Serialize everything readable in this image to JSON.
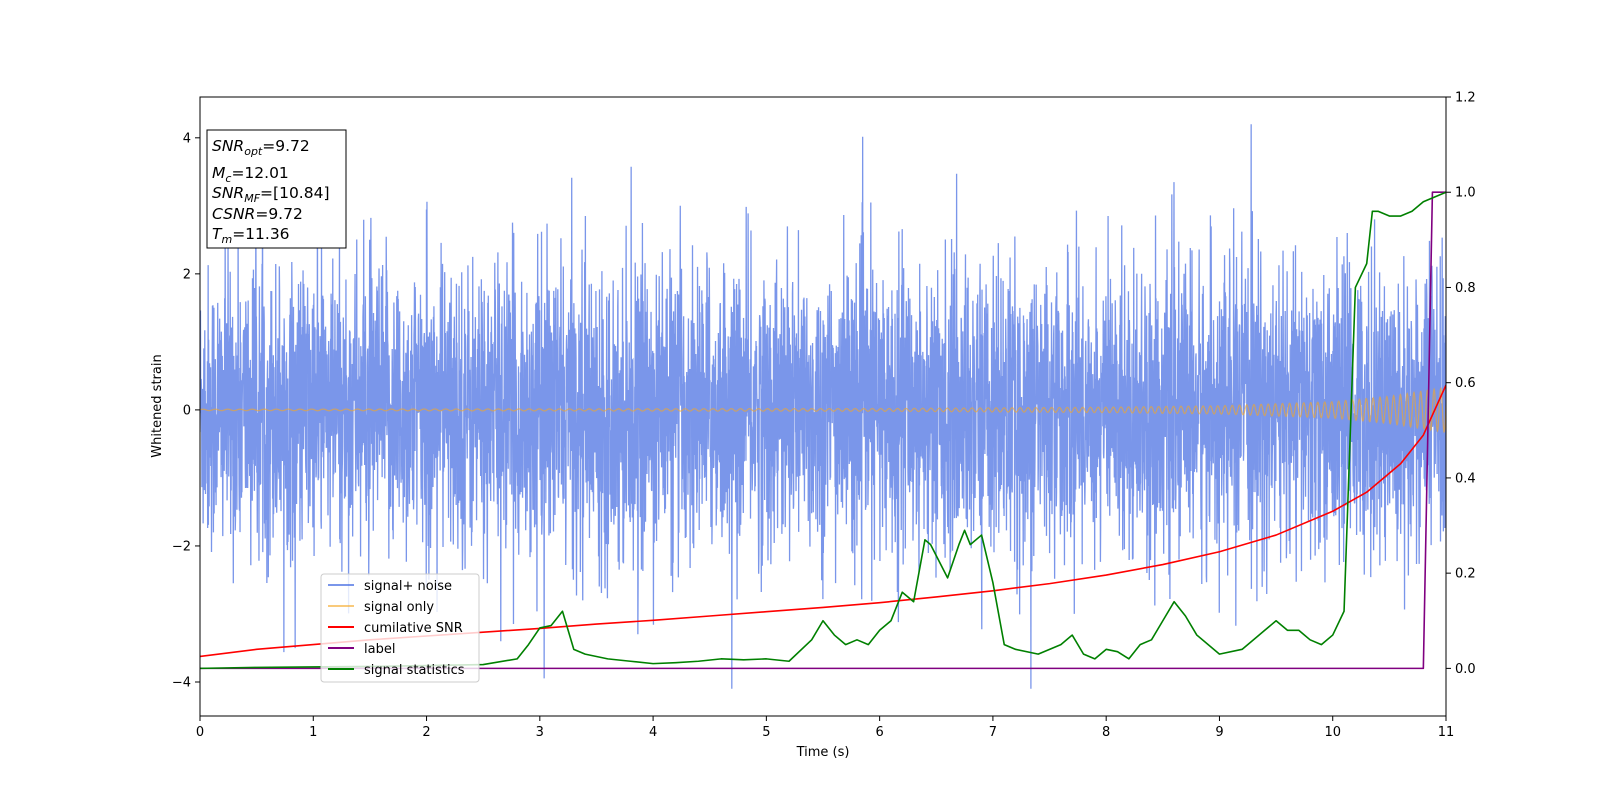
{
  "chart_data": {
    "type": "line",
    "xlabel": "Time (s)",
    "ylabel": "Whitened strain",
    "xlim": [
      0,
      11
    ],
    "ylim": [
      -4.5,
      4.6
    ],
    "y2lim": [
      -0.1,
      1.2
    ],
    "x_ticks": [
      "0",
      "1",
      "2",
      "3",
      "4",
      "5",
      "6",
      "7",
      "8",
      "9",
      "10",
      "11"
    ],
    "y_ticks": [
      "−4",
      "−2",
      "0",
      "2",
      "4"
    ],
    "y2_ticks": [
      "0.0",
      "0.2",
      "0.4",
      "0.6",
      "0.8",
      "1.0",
      "1.2"
    ],
    "grid": false,
    "legend_position": "lower-left",
    "info_box": {
      "snr_opt": {
        "sym": "SNR",
        "sub": "opt",
        "val": "=9.72"
      },
      "mc": {
        "sym": "M",
        "sub": "c",
        "val": "=12.01"
      },
      "snr_mf": {
        "sym": "SNR",
        "sub": "MF",
        "val": "=[10.84]"
      },
      "csnr": {
        "sym": "CSNR",
        "sub": "",
        "val": "=9.72"
      },
      "tm": {
        "sym": "T",
        "sub": "m",
        "val": "=11.36"
      }
    },
    "series": [
      {
        "name": "signal+ noise",
        "color": "#4169e1",
        "axis": "left",
        "description_values": "whitened noise, std ~1, peaks to ~4.2 / ~-4.1"
      },
      {
        "name": "signal only",
        "color": "#f5a623",
        "axis": "left",
        "amplitude_envelope": {
          "x": [
            0,
            6,
            8,
            9,
            10,
            10.5,
            11
          ],
          "y": [
            0.01,
            0.02,
            0.04,
            0.06,
            0.12,
            0.2,
            0.33
          ]
        }
      },
      {
        "name": "cumilative SNR",
        "color": "#ff0000",
        "axis": "right",
        "x": [
          0,
          0.5,
          1,
          1.5,
          2,
          2.5,
          3,
          3.5,
          4,
          4.5,
          5,
          5.5,
          6,
          6.5,
          7,
          7.5,
          8,
          8.5,
          9,
          9.5,
          10,
          10.3,
          10.6,
          10.8,
          11
        ],
        "y": [
          0.025,
          0.04,
          0.05,
          0.06,
          0.068,
          0.076,
          0.084,
          0.093,
          0.101,
          0.11,
          0.119,
          0.128,
          0.138,
          0.15,
          0.163,
          0.178,
          0.196,
          0.218,
          0.245,
          0.28,
          0.33,
          0.37,
          0.43,
          0.49,
          0.595
        ]
      },
      {
        "name": "label",
        "color": "#800080",
        "axis": "right",
        "x": [
          0,
          10.8,
          10.88,
          11
        ],
        "y": [
          0,
          0,
          1,
          1
        ]
      },
      {
        "name": "signal statistics",
        "color": "#008000",
        "axis": "right",
        "x": [
          0,
          0.5,
          1,
          1.5,
          2,
          2.5,
          2.8,
          2.9,
          3.0,
          3.1,
          3.2,
          3.3,
          3.4,
          3.6,
          3.8,
          4.0,
          4.2,
          4.4,
          4.6,
          4.8,
          5.0,
          5.2,
          5.4,
          5.5,
          5.6,
          5.7,
          5.8,
          5.9,
          6.0,
          6.1,
          6.2,
          6.3,
          6.4,
          6.45,
          6.6,
          6.7,
          6.75,
          6.8,
          6.9,
          7.0,
          7.1,
          7.2,
          7.4,
          7.6,
          7.7,
          7.8,
          7.9,
          8.0,
          8.1,
          8.2,
          8.3,
          8.4,
          8.5,
          8.6,
          8.7,
          8.8,
          9.0,
          9.2,
          9.4,
          9.5,
          9.6,
          9.7,
          9.8,
          9.9,
          10.0,
          10.1,
          10.2,
          10.3,
          10.35,
          10.4,
          10.5,
          10.6,
          10.7,
          10.8,
          10.9,
          11.0
        ],
        "y": [
          0.0,
          0.002,
          0.003,
          0.004,
          0.006,
          0.008,
          0.02,
          0.05,
          0.085,
          0.09,
          0.12,
          0.04,
          0.03,
          0.02,
          0.015,
          0.01,
          0.012,
          0.015,
          0.02,
          0.018,
          0.02,
          0.015,
          0.06,
          0.1,
          0.07,
          0.05,
          0.06,
          0.05,
          0.08,
          0.1,
          0.16,
          0.14,
          0.27,
          0.26,
          0.19,
          0.26,
          0.29,
          0.26,
          0.28,
          0.18,
          0.05,
          0.04,
          0.03,
          0.05,
          0.07,
          0.03,
          0.02,
          0.04,
          0.035,
          0.02,
          0.05,
          0.06,
          0.1,
          0.14,
          0.11,
          0.07,
          0.03,
          0.04,
          0.08,
          0.1,
          0.08,
          0.08,
          0.06,
          0.05,
          0.07,
          0.12,
          0.8,
          0.85,
          0.96,
          0.96,
          0.95,
          0.95,
          0.96,
          0.98,
          0.99,
          1.0
        ]
      }
    ]
  }
}
